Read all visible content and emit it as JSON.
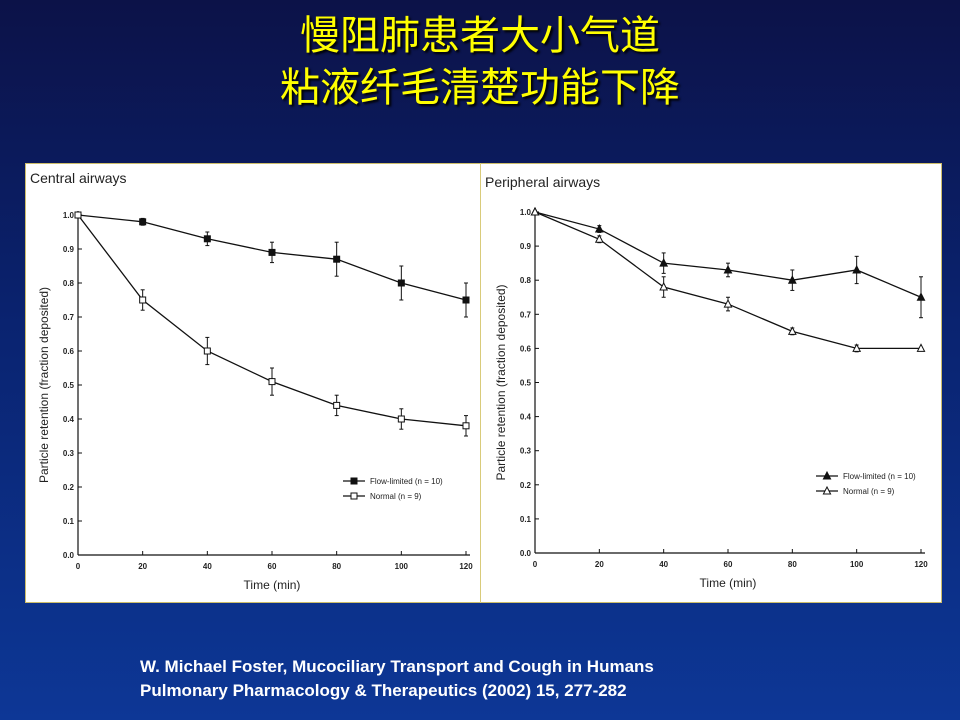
{
  "slide": {
    "title_line1": "慢阻肺患者大小气道",
    "title_line2": "粘液纤毛清楚功能下降",
    "citation_line1": "W. Michael Foster, Mucociliary Transport and Cough in Humans",
    "citation_line2": "Pulmonary Pharmacology & Therapeutics (2002) 15, 277-282"
  },
  "chart_data": [
    {
      "type": "line",
      "title": "Central airways",
      "xlabel": "Time (min)",
      "ylabel": "Particle retention (fraction deposited)",
      "x": [
        0,
        20,
        40,
        60,
        80,
        100,
        120
      ],
      "xticks": [
        "0",
        "20",
        "40",
        "60",
        "80",
        "100",
        "120"
      ],
      "yticks": [
        "0.0",
        "0.1",
        "0.2",
        "0.3",
        "0.4",
        "0.5",
        "0.6",
        "0.7",
        "0.8",
        "0.9",
        "1.0"
      ],
      "xlim": [
        0,
        120
      ],
      "ylim": [
        0,
        1.0
      ],
      "grid": false,
      "legend_position": "lower-right",
      "series": [
        {
          "name": "Flow-limited (n = 10)",
          "marker": "filled-square",
          "values": [
            1.0,
            0.98,
            0.93,
            0.89,
            0.87,
            0.8,
            0.75
          ],
          "error": [
            0,
            0.01,
            0.02,
            0.03,
            0.05,
            0.05,
            0.05
          ]
        },
        {
          "name": "Normal (n = 9)",
          "marker": "open-square",
          "values": [
            1.0,
            0.75,
            0.6,
            0.51,
            0.44,
            0.4,
            0.38
          ],
          "error": [
            0,
            0.03,
            0.04,
            0.04,
            0.03,
            0.03,
            0.03
          ]
        }
      ]
    },
    {
      "type": "line",
      "title": "Peripheral airways",
      "xlabel": "Time (min)",
      "ylabel": "Particle retention (fraction deposited)",
      "x": [
        0,
        20,
        40,
        60,
        80,
        100,
        120
      ],
      "xticks": [
        "0",
        "20",
        "40",
        "60",
        "80",
        "100",
        "120"
      ],
      "yticks": [
        "0.0",
        "0.1",
        "0.2",
        "0.3",
        "0.4",
        "0.5",
        "0.6",
        "0.7",
        "0.8",
        "0.9",
        "1.0"
      ],
      "xlim": [
        0,
        120
      ],
      "ylim": [
        0,
        1.0
      ],
      "grid": false,
      "legend_position": "lower-right",
      "series": [
        {
          "name": "Flow-limited (n = 10)",
          "marker": "filled-triangle",
          "values": [
            1.0,
            0.95,
            0.85,
            0.83,
            0.8,
            0.83,
            0.75
          ],
          "error": [
            0,
            0.01,
            0.03,
            0.02,
            0.03,
            0.04,
            0.06
          ]
        },
        {
          "name": "Normal (n = 9)",
          "marker": "open-triangle",
          "values": [
            1.0,
            0.92,
            0.78,
            0.73,
            0.65,
            0.6,
            0.6
          ],
          "error": [
            0,
            0.01,
            0.03,
            0.02,
            0.01,
            0.01,
            0
          ]
        }
      ]
    }
  ]
}
